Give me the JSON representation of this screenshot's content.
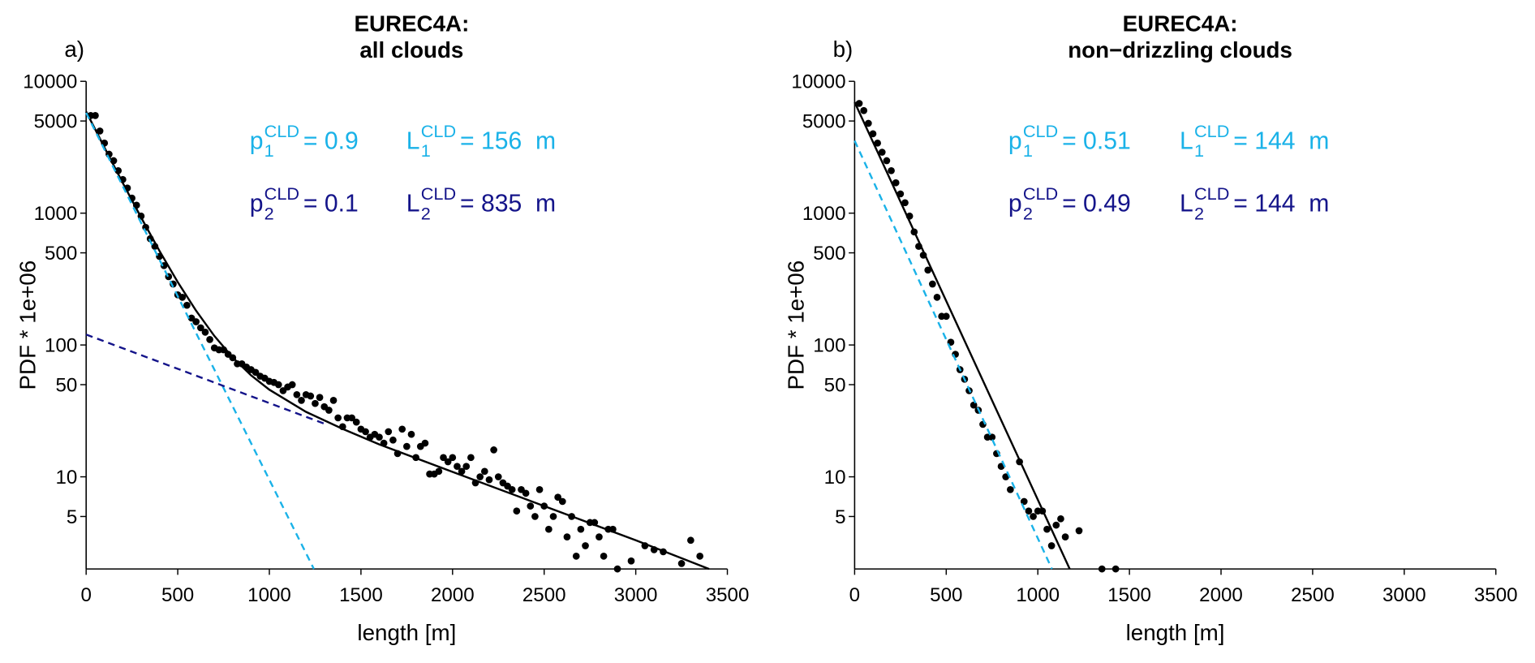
{
  "chart_data": [
    {
      "type": "scatter",
      "panel_label": "a)",
      "title": [
        "EUREC4A:",
        "all clouds"
      ],
      "x_label": "length [m]",
      "y_label": "PDF * 1e+06",
      "xlim": [
        0,
        3500
      ],
      "ylim": [
        2,
        10000
      ],
      "y_scale": "log",
      "xticks": [
        0,
        500,
        1000,
        1500,
        2000,
        2500,
        3000,
        3500
      ],
      "yticks": [
        5,
        10,
        50,
        100,
        500,
        1000,
        5000,
        10000
      ],
      "series": [
        {
          "style": "markers",
          "color": "#000000",
          "x": [
            25,
            50,
            75,
            100,
            125,
            150,
            175,
            200,
            225,
            250,
            275,
            300,
            325,
            350,
            375,
            400,
            425,
            450,
            475,
            500,
            525,
            550,
            575,
            600,
            625,
            650,
            675,
            700,
            725,
            750,
            775,
            800,
            825,
            850,
            875,
            900,
            925,
            950,
            975,
            1000,
            1025,
            1050,
            1075,
            1100,
            1125,
            1150,
            1175,
            1200,
            1225,
            1250,
            1275,
            1300,
            1325,
            1350,
            1375,
            1400,
            1425,
            1450,
            1475,
            1500,
            1525,
            1550,
            1575,
            1600,
            1625,
            1650,
            1675,
            1700,
            1725,
            1750,
            1775,
            1800,
            1825,
            1850,
            1875,
            1900,
            1925,
            1950,
            1975,
            2000,
            2025,
            2050,
            2075,
            2100,
            2125,
            2150,
            2175,
            2200,
            2225,
            2250,
            2275,
            2300,
            2325,
            2350,
            2375,
            2400,
            2425,
            2450,
            2475,
            2500,
            2525,
            2550,
            2575,
            2600,
            2625,
            2650,
            2675,
            2700,
            2725,
            2750,
            2775,
            2800,
            2825,
            2850,
            2875,
            2900,
            2975,
            3050,
            3100,
            3150,
            3250,
            3300,
            3350
          ],
          "values": [
            5500,
            5500,
            4200,
            3400,
            2800,
            2500,
            2100,
            1800,
            1550,
            1300,
            1150,
            950,
            780,
            640,
            560,
            470,
            400,
            330,
            290,
            240,
            230,
            200,
            160,
            150,
            135,
            125,
            110,
            95,
            92,
            92,
            85,
            80,
            72,
            72,
            68,
            65,
            62,
            58,
            56,
            53,
            52,
            50,
            45,
            48,
            50,
            42,
            38,
            42,
            41,
            36,
            40,
            34,
            32,
            38,
            28,
            24,
            28,
            28,
            26,
            23,
            22,
            20,
            21,
            20,
            18,
            22,
            19,
            15,
            23,
            17,
            21,
            14,
            17,
            18,
            10.5,
            10.5,
            11,
            14,
            13,
            14,
            12,
            11,
            12,
            14,
            9,
            10,
            11,
            9.5,
            16,
            10,
            9,
            8.5,
            8,
            5.5,
            8,
            7.5,
            6,
            5,
            8,
            6,
            4,
            5,
            7,
            6.5,
            3.5,
            5,
            2.5,
            4,
            3,
            4.5,
            4.5,
            3.5,
            2.5,
            4,
            4,
            2,
            2.3,
            3,
            2.8,
            2.7,
            2.2,
            3.3,
            2.5
          ]
        },
        {
          "style": "solid",
          "color": "#000000",
          "x": [
            0,
            100,
            200,
            300,
            400,
            500,
            600,
            700,
            800,
            900,
            1000,
            1200,
            1400,
            1600,
            2000,
            2500,
            3000,
            3400
          ],
          "values": [
            5889,
            3145,
            1695,
            927,
            518,
            300,
            182,
            117,
            80.3,
            58.9,
            45.8,
            31.1,
            23.1,
            17.6,
            10.9,
            6.0,
            3.3,
            2.0
          ]
        },
        {
          "style": "dashed",
          "color": "#1ab2e8",
          "x": [
            0,
            1243
          ],
          "values": [
            5769,
            2
          ]
        },
        {
          "style": "dashed",
          "color": "#14148a",
          "x": [
            0,
            1300
          ],
          "values": [
            120,
            25.3
          ]
        }
      ],
      "annotations": [
        {
          "base": "p",
          "sub": "1",
          "sup": "CLD",
          "text": "= 0.9",
          "color": "#1ab2e8"
        },
        {
          "base": "L",
          "sub": "1",
          "sup": "CLD",
          "text": "= 156  m",
          "color": "#1ab2e8"
        },
        {
          "base": "p",
          "sub": "2",
          "sup": "CLD",
          "text": "= 0.1",
          "color": "#14148a"
        },
        {
          "base": "L",
          "sub": "2",
          "sup": "CLD",
          "text": "= 835  m",
          "color": "#14148a"
        }
      ]
    },
    {
      "type": "scatter",
      "panel_label": "b)",
      "title": [
        "EUREC4A:",
        "non−drizzling clouds"
      ],
      "x_label": "length [m]",
      "y_label": "PDF * 1e+06",
      "xlim": [
        0,
        3500
      ],
      "ylim": [
        2,
        10000
      ],
      "y_scale": "log",
      "xticks": [
        0,
        500,
        1000,
        1500,
        2000,
        2500,
        3000,
        3500
      ],
      "yticks": [
        5,
        10,
        50,
        100,
        500,
        1000,
        5000,
        10000
      ],
      "series": [
        {
          "style": "markers",
          "color": "#000000",
          "x": [
            25,
            50,
            75,
            100,
            125,
            150,
            175,
            200,
            225,
            250,
            275,
            300,
            325,
            350,
            375,
            400,
            425,
            450,
            475,
            500,
            525,
            550,
            575,
            600,
            625,
            650,
            675,
            700,
            725,
            750,
            775,
            800,
            825,
            850,
            900,
            925,
            950,
            975,
            1000,
            1025,
            1050,
            1075,
            1100,
            1125,
            1150,
            1225,
            1350,
            1425
          ],
          "values": [
            6800,
            6000,
            4800,
            4000,
            3400,
            2900,
            2500,
            2100,
            1700,
            1400,
            1200,
            950,
            720,
            560,
            480,
            370,
            290,
            230,
            165,
            165,
            105,
            85,
            65,
            55,
            45,
            35,
            32,
            25,
            20,
            20,
            15,
            12,
            10,
            8,
            13,
            6.5,
            5.5,
            5,
            5.5,
            5.5,
            4,
            3,
            4.3,
            4.8,
            3.5,
            3.9,
            2,
            2
          ]
        },
        {
          "style": "solid",
          "color": "#000000",
          "x": [
            0,
            1174
          ],
          "values": [
            6944,
            2
          ]
        },
        {
          "style": "dashed",
          "color": "#1ab2e8",
          "x": [
            0,
            1077
          ],
          "values": [
            3542,
            2
          ]
        }
      ],
      "annotations": [
        {
          "base": "p",
          "sub": "1",
          "sup": "CLD",
          "text": "= 0.51",
          "color": "#1ab2e8"
        },
        {
          "base": "L",
          "sub": "1",
          "sup": "CLD",
          "text": "= 144  m",
          "color": "#1ab2e8"
        },
        {
          "base": "p",
          "sub": "2",
          "sup": "CLD",
          "text": "= 0.49",
          "color": "#14148a"
        },
        {
          "base": "L",
          "sub": "2",
          "sup": "CLD",
          "text": "= 144  m",
          "color": "#14148a"
        }
      ]
    }
  ]
}
